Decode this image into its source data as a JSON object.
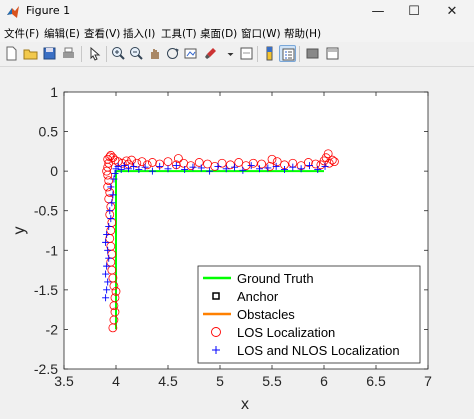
{
  "window": {
    "title": "Figure 1",
    "controls": {
      "minimize": "—",
      "maximize": "☐",
      "close": "✕"
    }
  },
  "menu": {
    "items": [
      "文件(F)",
      "编辑(E)",
      "查看(V)",
      "插入(I)",
      "工具(T)",
      "桌面(D)",
      "窗口(W)",
      "帮助(H)"
    ]
  },
  "toolbar": {
    "icons": [
      "new-figure-icon",
      "open-file-icon",
      "save-icon",
      "print-icon",
      "edit-plot-icon",
      "zoom-in-icon",
      "zoom-out-icon",
      "pan-icon",
      "rotate-3d-icon",
      "data-cursor-icon",
      "brush-icon",
      "link-plot-icon",
      "colorbar-icon",
      "legend-icon",
      "hide-plot-tools-icon",
      "show-plot-tools-icon"
    ]
  },
  "chart_data": {
    "type": "scatter",
    "xlabel": "x",
    "ylabel": "y",
    "xlim": [
      3.5,
      7
    ],
    "ylim": [
      -2.5,
      1
    ],
    "xticks": [
      "3.5",
      "4",
      "4.5",
      "5",
      "5.5",
      "6",
      "6.5",
      "7"
    ],
    "yticks": [
      "1",
      "0.5",
      "0",
      "-0.5",
      "-1",
      "-1.5",
      "-2",
      "-2.5"
    ],
    "grid": false,
    "legend_position": "bottom-right",
    "colors": {
      "ground_truth": "#00ff00",
      "anchor": "#000000",
      "obstacles": "#ff8000",
      "los": "#ff0000",
      "nlos": "#0000ff"
    },
    "legend": [
      "Ground Truth",
      "Anchor",
      "Obstacles",
      "LOS Localization",
      "LOS and NLOS Localization"
    ],
    "ground_truth": {
      "x": [
        4.0,
        4.0,
        6.0
      ],
      "y": [
        -2.0,
        0.0,
        0.0
      ]
    },
    "los": {
      "x": [
        3.97,
        3.98,
        3.99,
        3.98,
        3.99,
        4.0,
        3.98,
        3.97,
        3.96,
        3.95,
        3.96,
        3.95,
        3.94,
        3.95,
        3.96,
        3.94,
        3.95,
        3.93,
        3.94,
        3.92,
        3.93,
        3.92,
        3.91,
        3.92,
        3.93,
        3.92,
        3.94,
        3.95,
        3.97,
        3.99,
        4.02,
        4.06,
        4.1,
        4.12,
        4.15,
        4.2,
        4.25,
        4.3,
        4.35,
        4.42,
        4.5,
        4.58,
        4.65,
        4.72,
        4.8,
        4.88,
        4.95,
        5.02,
        5.1,
        5.18,
        5.25,
        5.32,
        5.4,
        5.48,
        5.55,
        5.62,
        5.7,
        5.78,
        5.85,
        5.92,
        6.0,
        6.02,
        6.05,
        6.08,
        6.1,
        6.04,
        5.97,
        5.5,
        4.6
      ],
      "y": [
        -1.98,
        -1.88,
        -1.78,
        -1.7,
        -1.6,
        -1.52,
        -1.45,
        -1.35,
        -1.25,
        -1.15,
        -1.05,
        -0.95,
        -0.85,
        -0.75,
        -0.65,
        -0.55,
        -0.45,
        -0.35,
        -0.27,
        -0.2,
        -0.12,
        -0.05,
        0.0,
        0.05,
        0.1,
        0.15,
        0.18,
        0.2,
        0.17,
        0.14,
        0.12,
        0.1,
        0.13,
        0.09,
        0.14,
        0.1,
        0.12,
        0.08,
        0.11,
        0.09,
        0.12,
        0.08,
        0.1,
        0.07,
        0.11,
        0.09,
        0.06,
        0.1,
        0.08,
        0.11,
        0.07,
        0.1,
        0.09,
        0.06,
        0.12,
        0.08,
        0.1,
        0.07,
        0.11,
        0.09,
        0.13,
        0.17,
        0.1,
        0.14,
        0.12,
        0.22,
        0.08,
        0.15,
        0.16
      ]
    },
    "nlos": {
      "x": [
        3.9,
        3.91,
        3.92,
        3.9,
        3.91,
        3.93,
        3.92,
        3.9,
        3.91,
        3.93,
        3.95,
        3.94,
        3.96,
        3.97,
        3.95,
        3.98,
        3.99,
        4.0,
        4.02,
        4.05,
        4.08,
        4.12,
        4.17,
        4.22,
        4.28,
        4.35,
        4.42,
        4.5,
        4.58,
        4.66,
        4.74,
        4.82,
        4.9,
        4.98,
        5.06,
        5.14,
        5.22,
        5.3,
        5.38,
        5.46,
        5.54,
        5.62,
        5.7,
        5.78,
        5.86,
        5.94,
        6.01
      ],
      "y": [
        -1.6,
        -1.5,
        -1.4,
        -1.3,
        -1.2,
        -1.1,
        -1.0,
        -0.9,
        -0.8,
        -0.7,
        -0.6,
        -0.5,
        -0.4,
        -0.3,
        -0.2,
        -0.1,
        -0.03,
        0.03,
        0.06,
        0.02,
        0.07,
        0.03,
        0.06,
        0.02,
        0.05,
        0.0,
        0.06,
        0.03,
        0.07,
        0.02,
        0.05,
        0.04,
        0.0,
        0.06,
        0.03,
        0.05,
        0.01,
        0.07,
        0.03,
        0.04,
        0.06,
        0.02,
        0.05,
        0.03,
        0.07,
        0.02,
        0.06
      ]
    }
  }
}
